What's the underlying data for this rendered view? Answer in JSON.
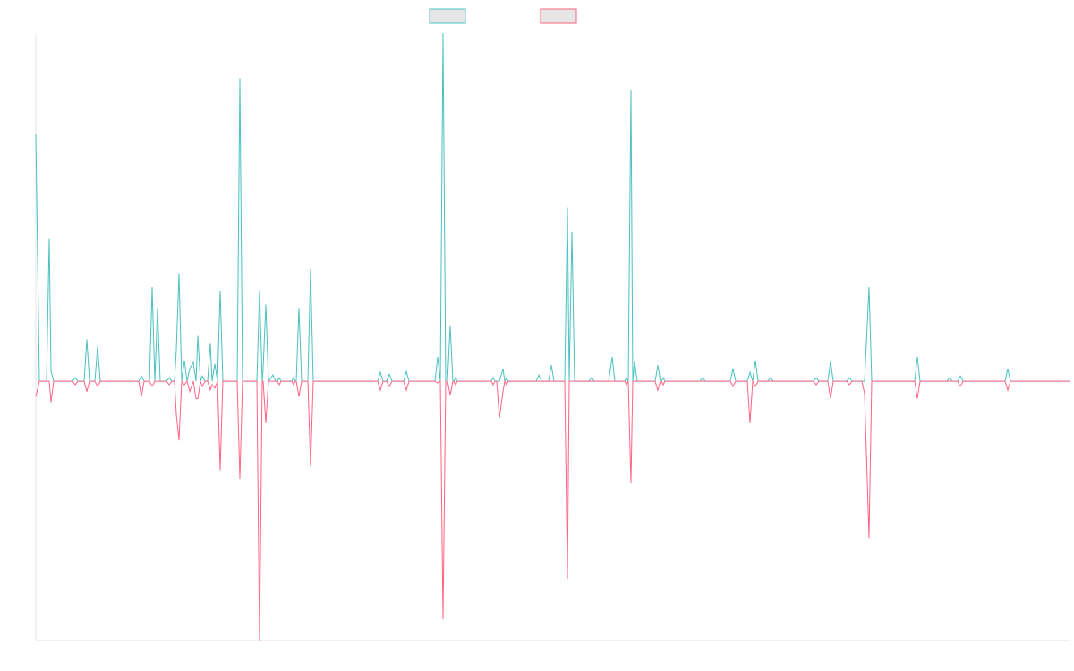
{
  "chart_data": {
    "type": "line",
    "x": [
      0,
      4,
      12,
      15,
      17,
      20,
      41,
      44,
      47,
      54,
      57,
      60,
      66,
      69,
      72,
      115,
      118,
      121,
      127,
      130,
      133,
      136,
      139,
      146,
      149,
      152,
      155,
      157,
      160,
      163,
      166,
      169,
      172,
      176,
      179,
      181,
      184,
      186,
      189,
      192,
      195,
      197,
      200,
      203,
      206,
      209,
      225,
      228,
      231,
      247,
      250,
      253,
      254,
      257,
      260,
      265,
      268,
      270,
      272,
      274,
      286,
      288,
      290,
      291,
      294,
      297,
      304,
      307,
      310,
      382,
      385,
      388,
      392,
      395,
      398,
      411,
      414,
      417,
      446,
      449,
      452,
      455,
      458,
      460,
      463,
      466,
      467,
      469,
      471,
      509,
      511,
      513,
      515,
      518,
      522,
      524,
      526,
      528,
      559,
      562,
      565,
      573,
      576,
      579,
      591,
      594,
      596,
      599,
      602,
      618,
      621,
      624,
      640,
      644,
      647,
      658,
      660,
      662,
      665,
      667,
      669,
      672,
      692,
      695,
      698,
      699,
      701,
      703,
      742,
      745,
      748,
      776,
      779,
      782,
      795,
      798,
      801,
      804,
      807,
      818,
      821,
      824,
      869,
      872,
      875,
      885,
      888,
      891,
      906,
      909,
      912,
      923,
      926,
      931,
      934,
      982,
      985,
      988,
      1018,
      1021,
      1024,
      1030,
      1033,
      1036,
      1083,
      1086,
      1089,
      1155
    ],
    "xlim": [
      0,
      1155
    ],
    "ylim": [
      -74.5,
      100
    ],
    "series": [
      {
        "color": "#4bc0c0",
        "values": [
          71,
          0,
          0,
          41,
          3,
          0,
          0,
          1,
          0,
          0,
          12,
          0,
          0,
          10,
          0,
          0,
          1.5,
          0,
          0,
          27,
          0,
          21,
          0,
          0,
          1,
          0,
          0,
          9,
          31,
          0,
          6,
          0,
          3.6,
          5.4,
          0,
          13,
          0,
          1.5,
          0,
          0,
          11,
          0,
          5,
          0,
          26,
          0,
          0,
          87,
          0,
          0,
          26,
          0,
          3.6,
          22,
          0,
          1.8,
          0,
          0,
          1,
          0,
          0,
          1,
          0,
          0,
          21,
          0,
          0,
          32,
          0,
          0,
          2.6,
          0,
          0,
          2,
          0,
          0,
          2.8,
          0,
          0,
          7,
          0,
          100,
          0,
          0,
          16,
          0,
          0,
          1,
          0,
          0,
          1,
          0,
          0,
          0,
          3.6,
          0,
          1,
          0,
          0,
          1.8,
          0,
          0,
          4.6,
          0,
          0,
          50,
          0,
          43,
          0,
          0,
          1,
          0,
          0,
          7,
          0,
          0,
          1,
          0,
          83.5,
          0,
          5.7,
          0,
          0,
          4.6,
          0,
          0,
          1,
          0,
          0,
          1,
          0,
          0,
          3.6,
          0,
          0,
          2.6,
          0,
          6,
          0,
          0,
          1,
          0,
          0,
          1,
          0,
          0,
          5.7,
          0,
          0,
          1,
          0,
          0,
          0,
          27,
          0,
          0,
          7,
          0,
          0,
          1,
          0,
          0,
          1.5,
          0,
          0,
          3.6,
          0,
          0
        ]
      },
      {
        "color": "#ff6384",
        "values": [
          -4.4,
          0,
          0,
          0,
          -6,
          0,
          0,
          -1,
          0,
          0,
          -3,
          0,
          0,
          -1.5,
          0,
          0,
          -4.4,
          0,
          0,
          -1.5,
          0,
          0,
          0,
          0,
          -1,
          0,
          0,
          -9.5,
          -17,
          0,
          -1,
          0,
          -3,
          0,
          -5,
          -5,
          0,
          -1.5,
          0,
          0,
          -2.5,
          -1,
          -2,
          0,
          -25.5,
          0,
          0,
          -28,
          0,
          0,
          -74.5,
          0,
          0,
          -12,
          0,
          0,
          0,
          0,
          -1,
          0,
          0,
          -1,
          0,
          0,
          -4.4,
          0,
          0,
          -24.4,
          0,
          0,
          -2.6,
          0,
          0,
          -1.5,
          0,
          0,
          -2.6,
          0,
          0,
          -0.5,
          0,
          -68.4,
          0,
          0,
          -4,
          0,
          0,
          -1,
          0,
          0,
          -1,
          0,
          0,
          -10.5,
          -3,
          0,
          -1,
          0,
          0,
          0,
          0,
          0,
          0,
          0,
          0,
          -56.8,
          0,
          0,
          0,
          0,
          0,
          0,
          0,
          0,
          0,
          0,
          -1,
          0,
          -29.3,
          0,
          0,
          0,
          0,
          -2.6,
          0,
          0,
          -1,
          0,
          0,
          0,
          0,
          0,
          -1.5,
          0,
          0,
          -12,
          0,
          -1.5,
          0,
          0,
          0,
          0,
          0,
          -1,
          0,
          0,
          -5,
          0,
          0,
          -1,
          0,
          0,
          -3.6,
          -45,
          0,
          0,
          -5,
          0,
          0,
          0,
          0,
          0,
          -1.5,
          0,
          0,
          -2.6,
          0,
          0
        ]
      }
    ]
  }
}
